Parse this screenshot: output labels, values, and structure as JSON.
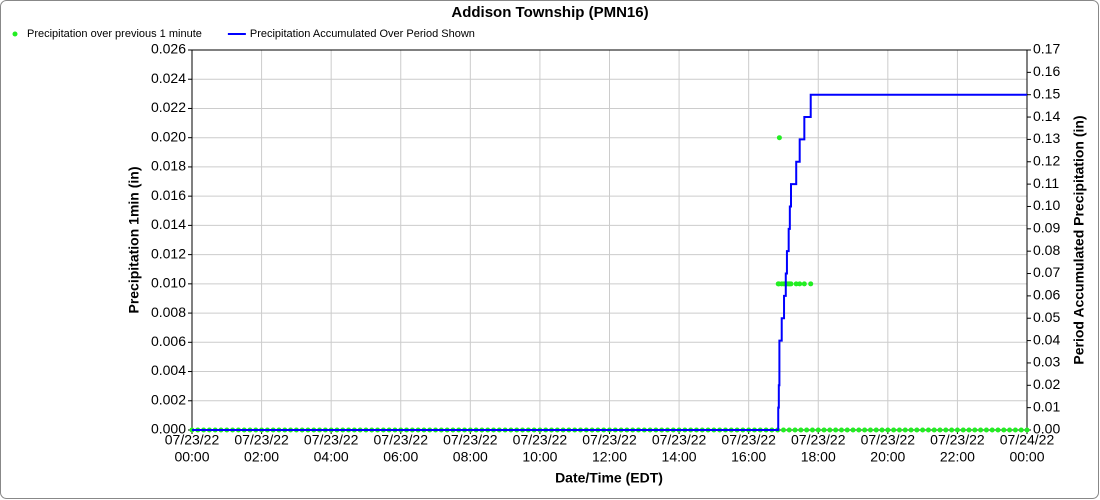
{
  "chart_data": {
    "type": "scatter-line",
    "title": "Addison Township (PMN16)",
    "xlabel": "Date/Time (EDT)",
    "ylabel": "Precipitation 1min (in)",
    "y2label": "Period Accumulated Precipitation (in)",
    "legend": "top-left",
    "grid": true,
    "xlim": [
      0,
      1440
    ],
    "xticks": [
      {
        "value": 0,
        "label": [
          "07/23/22",
          "00:00"
        ]
      },
      {
        "value": 120,
        "label": [
          "07/23/22",
          "02:00"
        ]
      },
      {
        "value": 240,
        "label": [
          "07/23/22",
          "04:00"
        ]
      },
      {
        "value": 360,
        "label": [
          "07/23/22",
          "06:00"
        ]
      },
      {
        "value": 480,
        "label": [
          "07/23/22",
          "08:00"
        ]
      },
      {
        "value": 600,
        "label": [
          "07/23/22",
          "10:00"
        ]
      },
      {
        "value": 720,
        "label": [
          "07/23/22",
          "12:00"
        ]
      },
      {
        "value": 840,
        "label": [
          "07/23/22",
          "14:00"
        ]
      },
      {
        "value": 960,
        "label": [
          "07/23/22",
          "16:00"
        ]
      },
      {
        "value": 1080,
        "label": [
          "07/23/22",
          "18:00"
        ]
      },
      {
        "value": 1200,
        "label": [
          "07/23/22",
          "20:00"
        ]
      },
      {
        "value": 1320,
        "label": [
          "07/23/22",
          "22:00"
        ]
      },
      {
        "value": 1440,
        "label": [
          "07/24/22",
          "00:00"
        ]
      }
    ],
    "ylim": [
      0,
      0.026
    ],
    "yticks": [
      {
        "value": 0,
        "label": "0.000"
      },
      0.002,
      0.004,
      0.006,
      0.008,
      {
        "value": 0.01,
        "label": "0.010"
      },
      0.012,
      0.014,
      0.016,
      0.018,
      {
        "value": 0.02,
        "label": "0.020"
      },
      0.022,
      0.024,
      0.026
    ],
    "y2lim": [
      0,
      0.17
    ],
    "y2ticks": [
      {
        "value": 0,
        "label": "0.00"
      },
      0.01,
      0.02,
      0.03,
      0.04,
      0.05,
      0.06,
      0.07,
      0.08,
      0.09,
      {
        "value": 0.1,
        "label": "0.10"
      },
      0.11,
      0.12,
      0.13,
      0.14,
      0.15,
      0.16,
      0.17
    ],
    "series": [
      {
        "name": "Precipitation over previous 1 minute",
        "color": "#22ee22",
        "kind": "points",
        "x": [
          0,
          10,
          20,
          30,
          40,
          50,
          60,
          70,
          80,
          90,
          100,
          110,
          120,
          130,
          140,
          150,
          160,
          170,
          180,
          190,
          200,
          210,
          220,
          230,
          240,
          250,
          260,
          270,
          280,
          290,
          300,
          310,
          320,
          330,
          340,
          350,
          360,
          370,
          380,
          390,
          400,
          410,
          420,
          430,
          440,
          450,
          460,
          470,
          480,
          490,
          500,
          510,
          520,
          530,
          540,
          550,
          560,
          570,
          580,
          590,
          600,
          610,
          620,
          630,
          640,
          650,
          660,
          670,
          680,
          690,
          700,
          710,
          720,
          730,
          740,
          750,
          760,
          770,
          780,
          790,
          800,
          810,
          820,
          830,
          840,
          850,
          860,
          870,
          880,
          890,
          900,
          910,
          920,
          930,
          940,
          950,
          960,
          970,
          980,
          990,
          1000,
          1010,
          1011,
          1012,
          1013,
          1017,
          1020,
          1021,
          1024,
          1026,
          1029,
          1030,
          1031,
          1033,
          1040,
          1042,
          1048,
          1050,
          1056,
          1060,
          1067,
          1070,
          1080,
          1090,
          1100,
          1110,
          1120,
          1130,
          1140,
          1150,
          1160,
          1170,
          1180,
          1190,
          1200,
          1210,
          1220,
          1230,
          1240,
          1250,
          1260,
          1270,
          1280,
          1290,
          1300,
          1310,
          1320,
          1330,
          1340,
          1350,
          1360,
          1370,
          1380,
          1390,
          1400,
          1410,
          1420,
          1430,
          1440
        ],
        "values": [
          0,
          0,
          0,
          0,
          0,
          0,
          0,
          0,
          0,
          0,
          0,
          0,
          0,
          0,
          0,
          0,
          0,
          0,
          0,
          0,
          0,
          0,
          0,
          0,
          0,
          0,
          0,
          0,
          0,
          0,
          0,
          0,
          0,
          0,
          0,
          0,
          0,
          0,
          0,
          0,
          0,
          0,
          0,
          0,
          0,
          0,
          0,
          0,
          0,
          0,
          0,
          0,
          0,
          0,
          0,
          0,
          0,
          0,
          0,
          0,
          0,
          0,
          0,
          0,
          0,
          0,
          0,
          0,
          0,
          0,
          0,
          0,
          0,
          0,
          0,
          0,
          0,
          0,
          0,
          0,
          0,
          0,
          0,
          0,
          0,
          0,
          0,
          0,
          0,
          0,
          0,
          0,
          0,
          0,
          0,
          0,
          0,
          0,
          0,
          0,
          0,
          0,
          0.01,
          0.01,
          0.02,
          0.01,
          0,
          0.01,
          0.01,
          0.01,
          0.01,
          0,
          0.01,
          0.01,
          0,
          0.01,
          0.01,
          0,
          0.01,
          0,
          0.01,
          0,
          0,
          0,
          0,
          0,
          0,
          0,
          0,
          0,
          0,
          0,
          0,
          0,
          0,
          0,
          0,
          0,
          0,
          0,
          0,
          0,
          0,
          0,
          0,
          0,
          0,
          0,
          0,
          0,
          0,
          0,
          0,
          0,
          0,
          0,
          0,
          0,
          0
        ]
      },
      {
        "name": "Precipitation Accumulated Over Period Shown",
        "color": "#0000ff",
        "kind": "line",
        "axis": "y2",
        "x": [
          0,
          1011,
          1011,
          1012,
          1012,
          1013,
          1013,
          1017,
          1017,
          1021,
          1021,
          1024,
          1024,
          1026,
          1026,
          1029,
          1029,
          1031,
          1031,
          1033,
          1033,
          1042,
          1042,
          1048,
          1048,
          1056,
          1056,
          1067,
          1067,
          1440
        ],
        "values": [
          0,
          0,
          0.01,
          0.01,
          0.02,
          0.02,
          0.04,
          0.04,
          0.05,
          0.05,
          0.06,
          0.06,
          0.07,
          0.07,
          0.08,
          0.08,
          0.09,
          0.09,
          0.1,
          0.1,
          0.11,
          0.11,
          0.12,
          0.12,
          0.13,
          0.13,
          0.14,
          0.14,
          0.15,
          0.15
        ]
      }
    ]
  }
}
